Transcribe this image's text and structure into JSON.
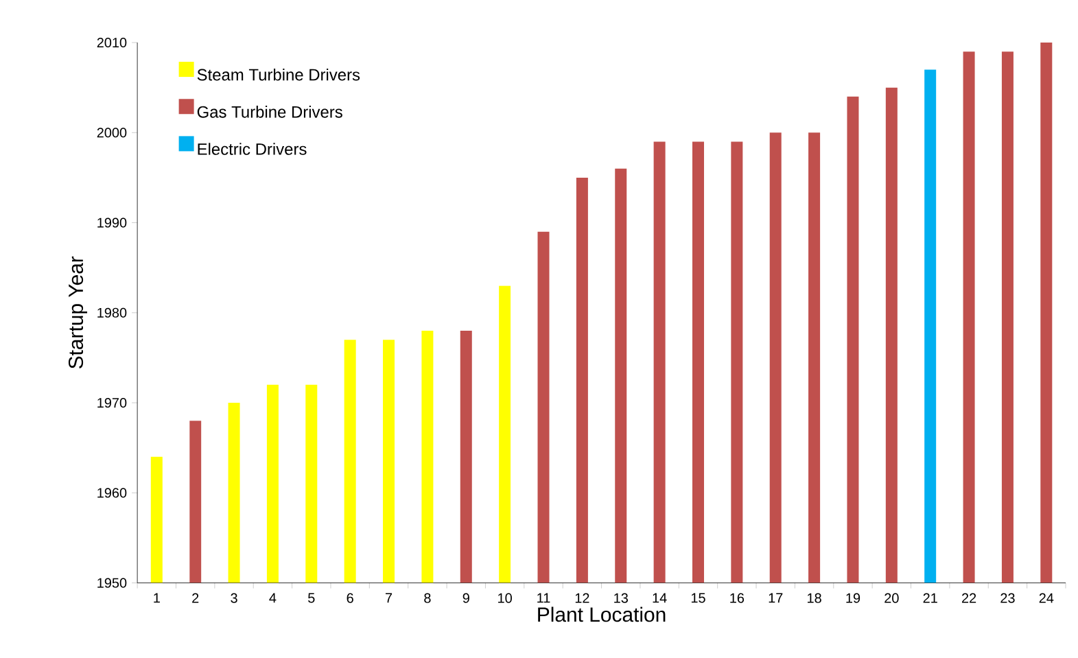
{
  "chart_data": {
    "type": "bar",
    "xlabel": "Plant Location",
    "ylabel": "Startup Year",
    "categories": [
      "1",
      "2",
      "3",
      "4",
      "5",
      "6",
      "7",
      "8",
      "9",
      "10",
      "11",
      "12",
      "13",
      "14",
      "15",
      "16",
      "17",
      "18",
      "19",
      "20",
      "21",
      "22",
      "23",
      "24"
    ],
    "series": [
      {
        "name": "Steam Turbine Drivers",
        "color": "#ffff00",
        "values": [
          1964,
          null,
          1970,
          1972,
          1972,
          1977,
          1977,
          1978,
          null,
          1983,
          null,
          null,
          null,
          null,
          null,
          null,
          null,
          null,
          null,
          null,
          null,
          null,
          null,
          null
        ]
      },
      {
        "name": "Gas Turbine Drivers",
        "color": "#c0504d",
        "values": [
          null,
          1968,
          null,
          null,
          null,
          null,
          null,
          null,
          1978,
          null,
          1989,
          1995,
          1996,
          1999,
          1999,
          1999,
          2000,
          2000,
          2004,
          2005,
          null,
          2009,
          2009,
          2010
        ]
      },
      {
        "name": "Electric Drivers",
        "color": "#00b0f0",
        "values": [
          null,
          null,
          null,
          null,
          null,
          null,
          null,
          null,
          null,
          null,
          null,
          null,
          null,
          null,
          null,
          null,
          null,
          null,
          null,
          null,
          2007,
          null,
          null,
          null
        ]
      }
    ],
    "ylim": [
      1950,
      2010
    ],
    "yticks": [
      1950,
      1960,
      1970,
      1980,
      1990,
      2000,
      2010
    ],
    "legend": "top left"
  }
}
